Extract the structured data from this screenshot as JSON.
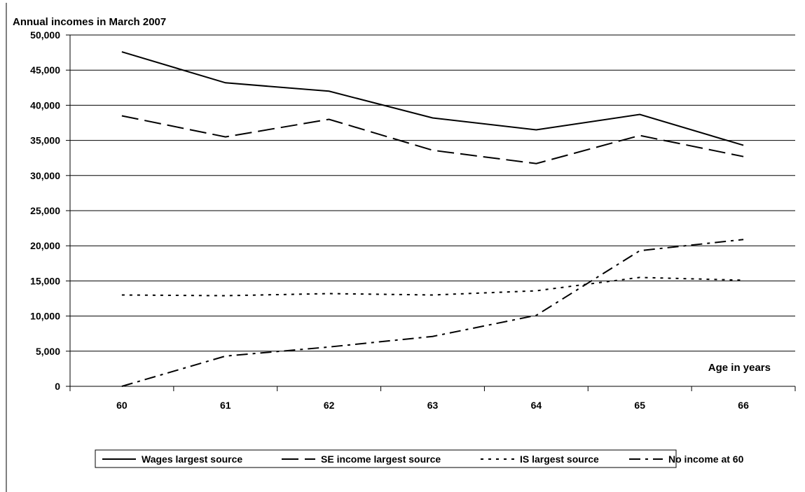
{
  "chart_data": {
    "type": "line",
    "title": "Annual incomes in March 2007",
    "xlabel": "Age in years",
    "ylabel": "",
    "x": [
      "60",
      "61",
      "62",
      "63",
      "64",
      "65",
      "66"
    ],
    "ylim": [
      0,
      50000
    ],
    "yticks": [
      0,
      5000,
      10000,
      15000,
      20000,
      25000,
      30000,
      35000,
      40000,
      45000,
      50000
    ],
    "ytick_labels": [
      "0",
      "5,000",
      "10,000",
      "15,000",
      "20,000",
      "25,000",
      "30,000",
      "35,000",
      "40,000",
      "45,000",
      "50,000"
    ],
    "grid": "horizontal",
    "legend_position": "bottom",
    "series": [
      {
        "name": "Wages largest source",
        "style": "solid",
        "values": [
          47600,
          43200,
          42000,
          38200,
          36500,
          38700,
          34300
        ]
      },
      {
        "name": "SE income largest source",
        "style": "dashed",
        "values": [
          38500,
          35500,
          38000,
          33600,
          31700,
          35700,
          32700
        ]
      },
      {
        "name": "IS largest source",
        "style": "dotted",
        "values": [
          13000,
          12900,
          13200,
          13000,
          13600,
          15500,
          15100
        ]
      },
      {
        "name": "No income at 60",
        "style": "dash-dot",
        "values": [
          0,
          4300,
          5600,
          7100,
          10100,
          19300,
          20900
        ]
      }
    ],
    "line_color": "#000000"
  }
}
